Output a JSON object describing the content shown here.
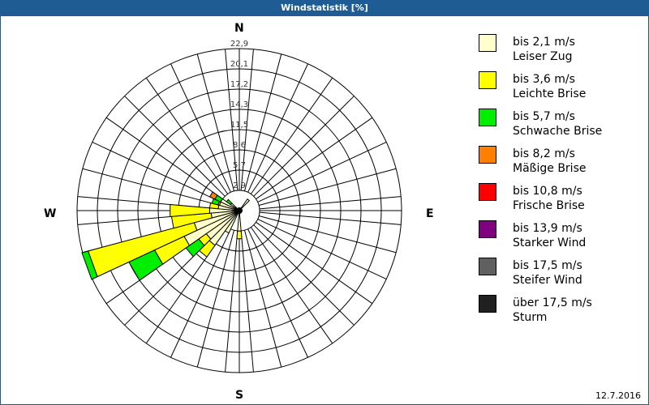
{
  "window": {
    "title": "Windstatistik [%]"
  },
  "compass": {
    "n": "N",
    "e": "E",
    "s": "S",
    "w": "W"
  },
  "date": "12.7.2016",
  "legend": [
    {
      "range": "bis 2,1 m/s",
      "name": "Leiser Zug",
      "color": "#ffffcc"
    },
    {
      "range": "bis 3,6 m/s",
      "name": "Leichte Brise",
      "color": "#ffff00"
    },
    {
      "range": "bis 5,7 m/s",
      "name": "Schwache Brise",
      "color": "#00ee00"
    },
    {
      "range": "bis 8,2 m/s",
      "name": "Mäßige Brise",
      "color": "#ff8000"
    },
    {
      "range": "bis 10,8 m/s",
      "name": "Frische Brise",
      "color": "#ff0000"
    },
    {
      "range": "bis 13,9 m/s",
      "name": "Starker Wind",
      "color": "#800080"
    },
    {
      "range": "bis 17,5 m/s",
      "name": "Steifer Wind",
      "color": "#606060"
    },
    {
      "range": "über 17,5 m/s",
      "name": "Sturm",
      "color": "#202020"
    }
  ],
  "chart_data": {
    "type": "wind-rose",
    "title": "Windstatistik [%]",
    "ring_labels": [
      "2,9",
      "5,7",
      "8,6",
      "11,5",
      "14,3",
      "17,2",
      "20,1",
      "22,9"
    ],
    "rmax": 22.9,
    "sector_width_deg": 10,
    "grid": true,
    "legend_position": "right",
    "series_order": [
      "bis 2,1 m/s",
      "bis 3,6 m/s",
      "bis 5,7 m/s",
      "bis 8,2 m/s",
      "bis 10,8 m/s",
      "bis 13,9 m/s",
      "bis 17,5 m/s",
      "über 17,5 m/s"
    ],
    "petals": [
      {
        "direction": 180,
        "cumulative": [
          2.9,
          4.0,
          4.0
        ]
      },
      {
        "direction": 210,
        "cumulative": [
          3.5,
          3.5
        ]
      },
      {
        "direction": 220,
        "cumulative": [
          6.0,
          8.0
        ]
      },
      {
        "direction": 230,
        "cumulative": [
          5.7,
          7.0,
          9.2
        ]
      },
      {
        "direction": 240,
        "cumulative": [
          8.6,
          13.2,
          17.2
        ]
      },
      {
        "direction": 250,
        "cumulative": [
          6.6,
          22.1,
          23.0
        ]
      },
      {
        "direction": 260,
        "cumulative": [
          4.0,
          9.6
        ]
      },
      {
        "direction": 270,
        "cumulative": [
          4.2,
          9.8
        ]
      },
      {
        "direction": 280,
        "cumulative": [
          3.0,
          4.2
        ]
      },
      {
        "direction": 290,
        "cumulative": [
          2.9,
          3.1,
          4.0
        ]
      },
      {
        "direction": 300,
        "cumulative": [
          2.9,
          2.9,
          3.8,
          4.6
        ]
      },
      {
        "direction": 310,
        "cumulative": [
          1.5,
          1.5,
          2.2
        ]
      },
      {
        "direction": 40,
        "cumulative": [
          2.0
        ]
      }
    ]
  }
}
